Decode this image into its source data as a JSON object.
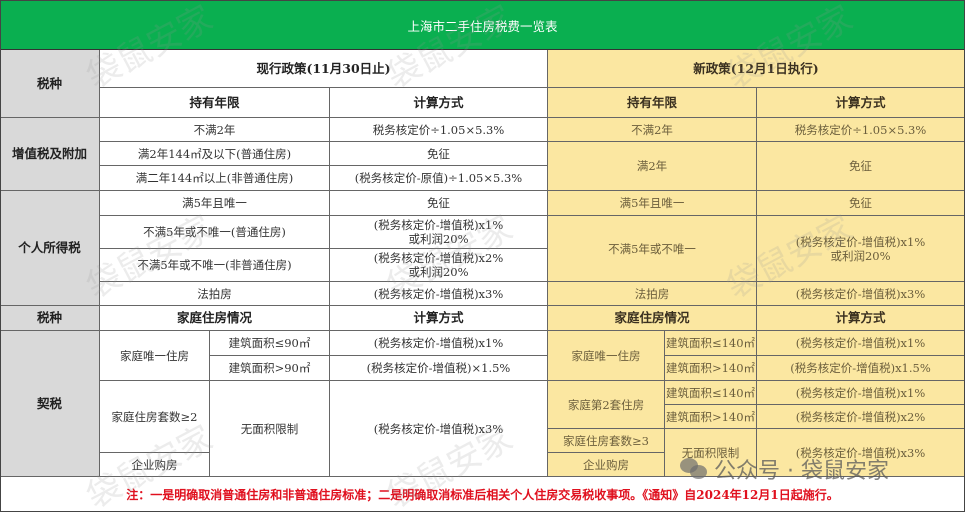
{
  "title": "上海市二手住房税费一览表",
  "headers": {
    "tax_type": "税种",
    "current_policy": "现行政策(11月30日止)",
    "new_policy": "新政策(12月1日执行)",
    "holding": "持有年限",
    "calc": "计算方式",
    "family": "家庭住房情况"
  },
  "vat": {
    "label": "增值税及附加",
    "old": [
      {
        "cond": "不满2年",
        "calc": "税务核定价÷1.05×5.3%"
      },
      {
        "cond": "满2年144㎡及以下(普通住房)",
        "calc": "免征"
      },
      {
        "cond": "满二年144㎡以上(非普通住房)",
        "calc": "(税务核定价-原值)÷1.05×5.3%"
      }
    ],
    "new": [
      {
        "cond": "不满2年",
        "calc": "税务核定价÷1.05×5.3%"
      },
      {
        "cond": "满2年",
        "calc": "免征"
      }
    ]
  },
  "pit": {
    "label": "个人所得税",
    "old": [
      {
        "cond": "满5年且唯一",
        "calc": "免征"
      },
      {
        "cond": "不满5年或不唯一(普通住房)",
        "calc": "(税务核定价-增值税)x1%",
        "calc2": "或利润20%"
      },
      {
        "cond": "不满5年或不唯一(非普通住房)",
        "calc": "(税务核定价-增值税)x2%",
        "calc2": "或利润20%"
      },
      {
        "cond": "法拍房",
        "calc": "(税务核定价-增值税)x3%"
      }
    ],
    "new": [
      {
        "cond": "满5年且唯一",
        "calc": "免征"
      },
      {
        "cond": "不满5年或不唯一",
        "calc": "(税务核定价-增值税)x1%",
        "calc2": "或利润20%"
      },
      {
        "cond": "法拍房",
        "calc": "(税务核定价-增值税)x3%"
      }
    ]
  },
  "deed": {
    "label": "契税",
    "old": {
      "only": "家庭唯一住房",
      "area_le": "建筑面积≤90㎡",
      "calc_le": "(税务核定价-增值税)x1%",
      "area_gt": "建筑面积>90㎡",
      "calc_gt": "(税务核定价-增值税)×1.5%",
      "multi": "家庭住房套数≥2",
      "no_limit": "无面积限制",
      "calc_multi": "(税务核定价-增值税)x3%",
      "company": "企业购房"
    },
    "new": {
      "only": "家庭唯一住房",
      "only_le": "建筑面积≤140㎡",
      "only_calc_le": "(税务核定价-增值税)x1%",
      "only_gt": "建筑面积>140㎡",
      "only_calc_gt": "(税务核定价-增值税)x1.5%",
      "second": "家庭第2套住房",
      "second_le": "建筑面积≤140㎡",
      "second_calc_le": "(税务核定价-增值税)x1%",
      "second_gt": "建筑面积>140㎡",
      "second_calc_gt": "(税务核定价-增值税)x2%",
      "multi": "家庭住房套数≥3",
      "company": "企业购房",
      "no_limit": "无面积限制",
      "calc_multi": "(税务核定价-增值税)x3%"
    }
  },
  "note": "注：一是明确取消普通住房和非普通住房标准；二是明确取消标准后相关个人住房交易税收事项。《通知》自2024年12月1日起施行。",
  "watermark": "袋鼠安家",
  "wechat_badge": "公众号 · 袋鼠安家",
  "colors": {
    "header_green": "#0aaf50",
    "label_gray": "#d9d9d9",
    "new_policy_yellow": "#fbe7a1",
    "note_red": "#e0101e"
  }
}
